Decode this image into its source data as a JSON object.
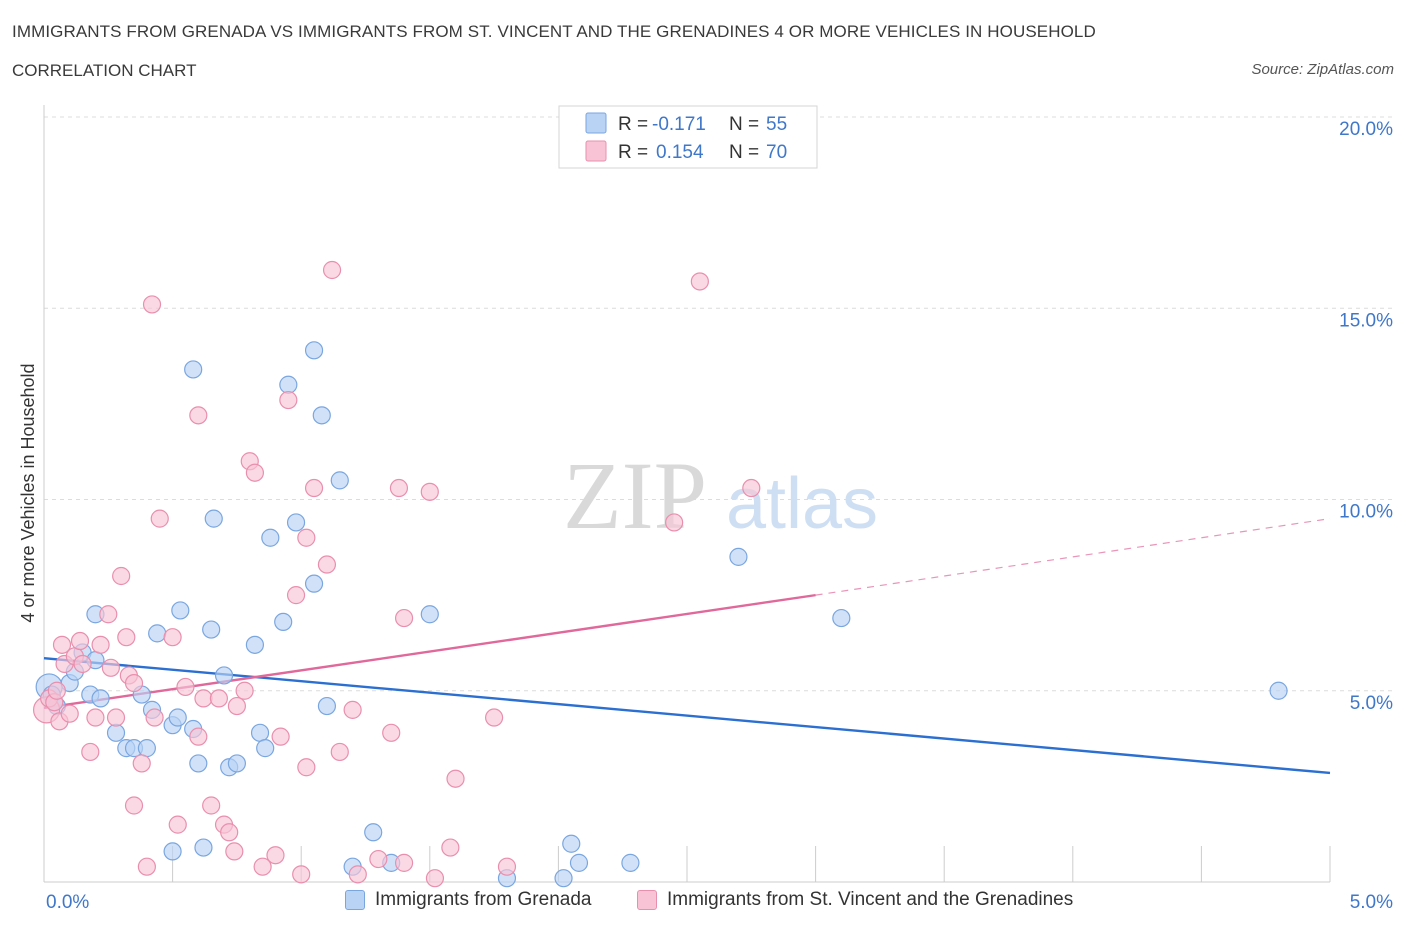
{
  "header": {
    "title": "IMMIGRANTS FROM GRENADA VS IMMIGRANTS FROM ST. VINCENT AND THE GRENADINES 4 OR MORE VEHICLES IN HOUSEHOLD",
    "subtitle": "CORRELATION CHART",
    "source": "Source: ZipAtlas.com"
  },
  "watermark": {
    "zip": "ZIP",
    "atlas": "atlas"
  },
  "colors": {
    "blue_fill": "#b9d3f5",
    "blue_stroke": "#7aa6e0",
    "blue_line": "#2b6fd1",
    "pink_fill": "#f8c4d5",
    "pink_stroke": "#e98fae",
    "pink_line": "#e0689a",
    "axis_text": "#3f77c9",
    "grid": "#dcdcdc"
  },
  "chart_data": {
    "type": "scatter",
    "ylabel": "4 or more Vehicles in Household",
    "xlabel": "",
    "xlim": [
      0,
      5
    ],
    "ylim": [
      0,
      20
    ],
    "x_tick_labels": [
      "0.0%",
      "5.0%"
    ],
    "y_tick_labels": [
      "5.0%",
      "10.0%",
      "15.0%",
      "20.0%"
    ],
    "y_ticks": [
      5,
      10,
      15,
      20
    ],
    "grid": true,
    "legend": {
      "placement": "top-center",
      "entries": [
        {
          "r_label": "R =",
          "r_value": "-0.171",
          "n_label": "N =",
          "n_value": "55"
        },
        {
          "r_label": "R =",
          "r_value": "0.154",
          "n_label": "N =",
          "n_value": "70"
        }
      ]
    },
    "series": [
      {
        "name": "Immigrants from Grenada",
        "color": "blue",
        "points": [
          [
            0.02,
            5.1
          ],
          [
            0.03,
            4.9
          ],
          [
            0.04,
            4.7
          ],
          [
            0.05,
            4.6
          ],
          [
            0.1,
            5.2
          ],
          [
            0.12,
            5.5
          ],
          [
            0.15,
            6.0
          ],
          [
            0.2,
            5.8
          ],
          [
            0.18,
            4.9
          ],
          [
            0.22,
            4.8
          ],
          [
            0.2,
            7.0
          ],
          [
            0.28,
            3.9
          ],
          [
            0.32,
            3.5
          ],
          [
            0.35,
            3.5
          ],
          [
            0.38,
            4.9
          ],
          [
            0.4,
            3.5
          ],
          [
            0.42,
            4.5
          ],
          [
            0.44,
            6.5
          ],
          [
            0.5,
            0.8
          ],
          [
            0.5,
            4.1
          ],
          [
            0.52,
            4.3
          ],
          [
            0.53,
            7.1
          ],
          [
            0.58,
            4.0
          ],
          [
            0.6,
            3.1
          ],
          [
            0.62,
            0.9
          ],
          [
            0.65,
            6.6
          ],
          [
            0.66,
            9.5
          ],
          [
            0.7,
            5.4
          ],
          [
            0.72,
            3.0
          ],
          [
            0.75,
            3.1
          ],
          [
            0.82,
            6.2
          ],
          [
            0.84,
            3.9
          ],
          [
            0.86,
            3.5
          ],
          [
            0.88,
            9.0
          ],
          [
            0.93,
            6.8
          ],
          [
            0.95,
            13.0
          ],
          [
            0.98,
            9.4
          ],
          [
            1.05,
            13.9
          ],
          [
            1.05,
            7.8
          ],
          [
            1.08,
            12.2
          ],
          [
            1.1,
            4.6
          ],
          [
            1.15,
            10.5
          ],
          [
            1.2,
            0.4
          ],
          [
            1.28,
            1.3
          ],
          [
            1.35,
            0.5
          ],
          [
            1.5,
            7.0
          ],
          [
            0.58,
            13.4
          ],
          [
            1.8,
            0.1
          ],
          [
            2.02,
            0.1
          ],
          [
            2.05,
            1.0
          ],
          [
            2.08,
            0.5
          ],
          [
            2.28,
            0.5
          ],
          [
            2.7,
            8.5
          ],
          [
            3.1,
            6.9
          ],
          [
            4.8,
            5.0
          ]
        ]
      },
      {
        "name": "Immigrants from St. Vincent and the Grenadines",
        "color": "pink",
        "points": [
          [
            0.01,
            4.5
          ],
          [
            0.02,
            4.8
          ],
          [
            0.04,
            4.7
          ],
          [
            0.05,
            5.0
          ],
          [
            0.06,
            4.2
          ],
          [
            0.07,
            6.2
          ],
          [
            0.08,
            5.7
          ],
          [
            0.1,
            4.4
          ],
          [
            0.12,
            5.9
          ],
          [
            0.14,
            6.3
          ],
          [
            0.15,
            5.7
          ],
          [
            0.18,
            3.4
          ],
          [
            0.2,
            4.3
          ],
          [
            0.22,
            6.2
          ],
          [
            0.25,
            7.0
          ],
          [
            0.26,
            5.6
          ],
          [
            0.28,
            4.3
          ],
          [
            0.3,
            8.0
          ],
          [
            0.32,
            6.4
          ],
          [
            0.33,
            5.4
          ],
          [
            0.35,
            5.2
          ],
          [
            0.35,
            2.0
          ],
          [
            0.38,
            3.1
          ],
          [
            0.4,
            0.4
          ],
          [
            0.42,
            15.1
          ],
          [
            0.43,
            4.3
          ],
          [
            0.45,
            9.5
          ],
          [
            0.5,
            6.4
          ],
          [
            0.52,
            1.5
          ],
          [
            0.55,
            5.1
          ],
          [
            0.6,
            12.2
          ],
          [
            0.6,
            3.8
          ],
          [
            0.62,
            4.8
          ],
          [
            0.65,
            2.0
          ],
          [
            0.68,
            4.8
          ],
          [
            0.7,
            1.5
          ],
          [
            0.72,
            1.3
          ],
          [
            0.74,
            0.8
          ],
          [
            0.75,
            4.6
          ],
          [
            0.78,
            5.0
          ],
          [
            0.8,
            11.0
          ],
          [
            0.82,
            10.7
          ],
          [
            0.85,
            0.4
          ],
          [
            0.9,
            0.7
          ],
          [
            0.92,
            3.8
          ],
          [
            0.95,
            12.6
          ],
          [
            0.98,
            7.5
          ],
          [
            1.0,
            0.2
          ],
          [
            1.02,
            9.0
          ],
          [
            1.02,
            3.0
          ],
          [
            1.05,
            10.3
          ],
          [
            1.1,
            8.3
          ],
          [
            1.12,
            16.0
          ],
          [
            1.15,
            3.4
          ],
          [
            1.2,
            4.5
          ],
          [
            1.22,
            0.2
          ],
          [
            1.3,
            0.6
          ],
          [
            1.35,
            3.9
          ],
          [
            1.38,
            10.3
          ],
          [
            1.4,
            0.5
          ],
          [
            1.4,
            6.9
          ],
          [
            1.5,
            10.2
          ],
          [
            1.52,
            0.1
          ],
          [
            1.58,
            0.9
          ],
          [
            1.6,
            2.7
          ],
          [
            1.75,
            4.3
          ],
          [
            1.8,
            0.4
          ],
          [
            2.45,
            9.4
          ],
          [
            2.55,
            15.7
          ],
          [
            2.75,
            10.3
          ]
        ]
      }
    ],
    "trendlines": [
      {
        "series": "Immigrants from Grenada",
        "x": [
          0,
          5
        ],
        "y": [
          5.85,
          2.85
        ],
        "style": "solid"
      },
      {
        "series": "Immigrants from St. Vincent and the Grenadines",
        "x": [
          0,
          3.0
        ],
        "y": [
          4.55,
          7.5
        ],
        "style": "solid"
      },
      {
        "series": "Immigrants from St. Vincent and the Grenadines",
        "x": [
          3.0,
          5
        ],
        "y": [
          7.5,
          9.5
        ],
        "style": "dashed"
      }
    ]
  }
}
